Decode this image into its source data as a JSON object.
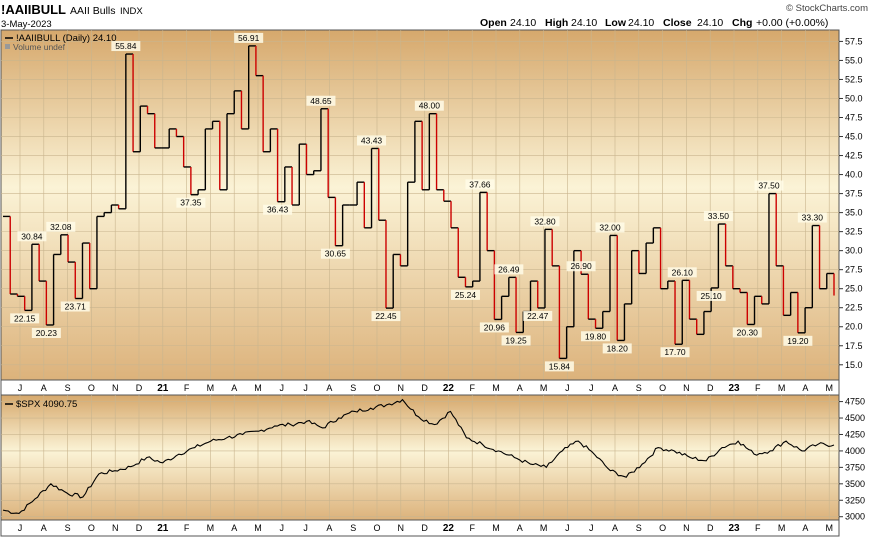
{
  "header": {
    "symbol": "!AAIIBULL",
    "description": "AAII Bulls",
    "exchange": "INDX",
    "date": "3-May-2023",
    "brand": "© StockCharts.com",
    "open_label": "Open",
    "open_value": "24.10",
    "high_label": "High",
    "high_value": "24.10",
    "low_label": "Low",
    "low_value": "24.10",
    "close_label": "Close",
    "close_value": "24.10",
    "chg_label": "Chg",
    "chg_value": "+0.00 (+0.00%)"
  },
  "chart_data": [
    {
      "type": "line",
      "name": "upper-panel",
      "legend": "!AAIIBULL (Daily) 24.10",
      "sublegend": "Volume undef",
      "ylim": [
        13,
        59
      ],
      "yticks": [
        "15.0",
        "17.5",
        "20.0",
        "22.5",
        "25.0",
        "27.5",
        "30.0",
        "32.5",
        "35.0",
        "37.5",
        "40.0",
        "42.5",
        "45.0",
        "47.5",
        "50.0",
        "52.5",
        "55.0",
        "57.5"
      ],
      "x_months": [
        "J",
        "A",
        "S",
        "O",
        "N",
        "D",
        "21",
        "F",
        "M",
        "A",
        "M",
        "J",
        "J",
        "A",
        "S",
        "O",
        "N",
        "D",
        "22",
        "F",
        "M",
        "A",
        "M",
        "J",
        "J",
        "A",
        "S",
        "O",
        "N",
        "D",
        "23",
        "F",
        "M",
        "A",
        "M"
      ],
      "x_bold": [
        "21",
        "22",
        "23"
      ],
      "weekly_values": [
        34.5,
        24.3,
        24.0,
        22.15,
        30.84,
        26.0,
        20.23,
        29.5,
        32.08,
        28.5,
        23.71,
        31.0,
        25.0,
        34.5,
        35.0,
        36.0,
        35.5,
        55.84,
        43.0,
        49.0,
        48.0,
        43.5,
        43.5,
        46.0,
        45.0,
        41.0,
        37.35,
        38.0,
        46.0,
        47.0,
        38.0,
        48.0,
        51.0,
        46.0,
        56.91,
        53.0,
        43.0,
        46.0,
        36.43,
        41.0,
        36.0,
        44.0,
        40.0,
        40.5,
        48.65,
        37.0,
        30.65,
        36.0,
        36.0,
        39.0,
        33.0,
        43.43,
        34.0,
        22.45,
        29.5,
        28.0,
        39.0,
        47.0,
        38.0,
        48.0,
        38.0,
        36.5,
        33.0,
        26.5,
        25.24,
        26.0,
        37.66,
        30.0,
        20.96,
        24.0,
        26.49,
        19.25,
        22.0,
        26.0,
        22.47,
        32.8,
        28.0,
        15.84,
        20.0,
        30.0,
        26.9,
        21.0,
        19.8,
        22.0,
        32.0,
        18.2,
        23.0,
        30.0,
        27.0,
        31.0,
        33.0,
        25.0,
        26.0,
        17.7,
        26.1,
        21.0,
        19.0,
        22.0,
        25.1,
        33.5,
        28.0,
        25.0,
        24.5,
        20.3,
        24.0,
        23.0,
        37.5,
        28.0,
        21.5,
        24.5,
        19.2,
        22.5,
        33.3,
        25.0,
        27.0,
        24.1
      ],
      "annotations": [
        {
          "i": 3,
          "text": "22.15",
          "pos": "below"
        },
        {
          "i": 4,
          "text": "30.84",
          "pos": "above"
        },
        {
          "i": 6,
          "text": "20.23",
          "pos": "below"
        },
        {
          "i": 8,
          "text": "32.08",
          "pos": "above"
        },
        {
          "i": 10,
          "text": "23.71",
          "pos": "below"
        },
        {
          "i": 17,
          "text": "55.84",
          "pos": "above"
        },
        {
          "i": 26,
          "text": "37.35",
          "pos": "below"
        },
        {
          "i": 34,
          "text": "56.91",
          "pos": "above"
        },
        {
          "i": 38,
          "text": "36.43",
          "pos": "below"
        },
        {
          "i": 44,
          "text": "48.65",
          "pos": "above"
        },
        {
          "i": 46,
          "text": "30.65",
          "pos": "below"
        },
        {
          "i": 51,
          "text": "43.43",
          "pos": "above"
        },
        {
          "i": 53,
          "text": "22.45",
          "pos": "below"
        },
        {
          "i": 59,
          "text": "48.00",
          "pos": "above"
        },
        {
          "i": 64,
          "text": "25.24",
          "pos": "below"
        },
        {
          "i": 66,
          "text": "37.66",
          "pos": "above"
        },
        {
          "i": 68,
          "text": "20.96",
          "pos": "below"
        },
        {
          "i": 70,
          "text": "26.49",
          "pos": "above"
        },
        {
          "i": 71,
          "text": "19.25",
          "pos": "below"
        },
        {
          "i": 74,
          "text": "22.47",
          "pos": "below"
        },
        {
          "i": 75,
          "text": "32.80",
          "pos": "above"
        },
        {
          "i": 77,
          "text": "15.84",
          "pos": "below"
        },
        {
          "i": 80,
          "text": "26.90",
          "pos": "above"
        },
        {
          "i": 82,
          "text": "19.80",
          "pos": "below"
        },
        {
          "i": 84,
          "text": "32.00",
          "pos": "above"
        },
        {
          "i": 85,
          "text": "18.20",
          "pos": "below"
        },
        {
          "i": 93,
          "text": "17.70",
          "pos": "below"
        },
        {
          "i": 94,
          "text": "26.10",
          "pos": "above"
        },
        {
          "i": 98,
          "text": "25.10",
          "pos": "below"
        },
        {
          "i": 99,
          "text": "33.50",
          "pos": "above"
        },
        {
          "i": 103,
          "text": "20.30",
          "pos": "below"
        },
        {
          "i": 106,
          "text": "37.50",
          "pos": "above"
        },
        {
          "i": 110,
          "text": "19.20",
          "pos": "below"
        },
        {
          "i": 112,
          "text": "33.30",
          "pos": "above"
        }
      ]
    },
    {
      "type": "line",
      "name": "lower-panel",
      "legend": "$SPX 4090.75",
      "ylim": [
        2950,
        4850
      ],
      "yticks": [
        "3000",
        "3250",
        "3500",
        "3750",
        "4000",
        "4250",
        "4500",
        "4750"
      ],
      "x_months": [
        "J",
        "A",
        "S",
        "O",
        "N",
        "D",
        "21",
        "F",
        "M",
        "A",
        "M",
        "J",
        "J",
        "A",
        "S",
        "O",
        "N",
        "D",
        "22",
        "F",
        "M",
        "A",
        "M",
        "J",
        "J",
        "A",
        "S",
        "O",
        "N",
        "D",
        "23",
        "F",
        "M",
        "A",
        "M"
      ],
      "x_bold": [
        "21",
        "22",
        "23"
      ],
      "monthly_values": [
        3100,
        3050,
        3271,
        3500,
        3360,
        3300,
        3650,
        3700,
        3760,
        3900,
        3820,
        3950,
        4050,
        4150,
        4200,
        4250,
        4300,
        4380,
        4400,
        4450,
        4350,
        4500,
        4600,
        4650,
        4700,
        4780,
        4520,
        4400,
        4600,
        4200,
        4100,
        4000,
        3900,
        3800,
        3750,
        4000,
        4150,
        3950,
        3700,
        3600,
        3800,
        4050,
        4000,
        3900,
        3850,
        4050,
        4150,
        3950,
        4000,
        4150,
        4000,
        4100,
        4090.75
      ],
      "series_color": "#000000"
    }
  ],
  "colors": {
    "bg_top": "#fdf6e0",
    "bg_bottom": "#d9b07a",
    "rise": "#000000",
    "fall": "#cc0000"
  }
}
